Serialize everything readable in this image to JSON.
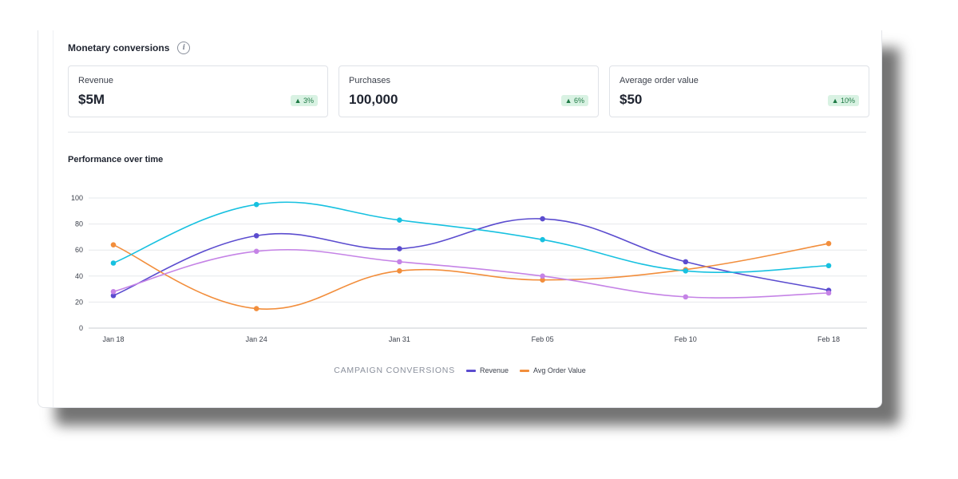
{
  "section": {
    "title": "Monetary conversions"
  },
  "kpis": [
    {
      "label": "Revenue",
      "value": "$5M",
      "delta": "▲ 3%"
    },
    {
      "label": "Purchases",
      "value": "100,000",
      "delta": "▲ 6%"
    },
    {
      "label": "Average order value",
      "value": "$50",
      "delta": "▲ 10%"
    }
  ],
  "perf": {
    "title": "Performance over time"
  },
  "legend": {
    "title": "CAMPAIGN CONVERSIONS",
    "items": [
      {
        "label": "Revenue",
        "color": "#5b4ccf"
      },
      {
        "label": "Avg Order Value",
        "color": "#f28e3c"
      }
    ]
  },
  "chart_data": {
    "type": "line",
    "x": [
      "Jan 18",
      "Jan 24",
      "Jan 31",
      "Feb 05",
      "Feb 10",
      "Feb 18"
    ],
    "ylim": [
      0,
      100
    ],
    "yticks": [
      0,
      20,
      40,
      60,
      80,
      100
    ],
    "grid": true,
    "legend_position": "bottom",
    "series": [
      {
        "name": "Revenue",
        "color": "#5b4ccf",
        "values": [
          25,
          71,
          61,
          84,
          51,
          29
        ]
      },
      {
        "name": "Avg Order Value",
        "color": "#f28e3c",
        "values": [
          64,
          15,
          44,
          37,
          45,
          65
        ]
      },
      {
        "color": "#17c1e0",
        "values": [
          50,
          95,
          83,
          68,
          44,
          48
        ]
      },
      {
        "color": "#c583e6",
        "values": [
          28,
          59,
          51,
          40,
          24,
          27
        ]
      }
    ]
  }
}
